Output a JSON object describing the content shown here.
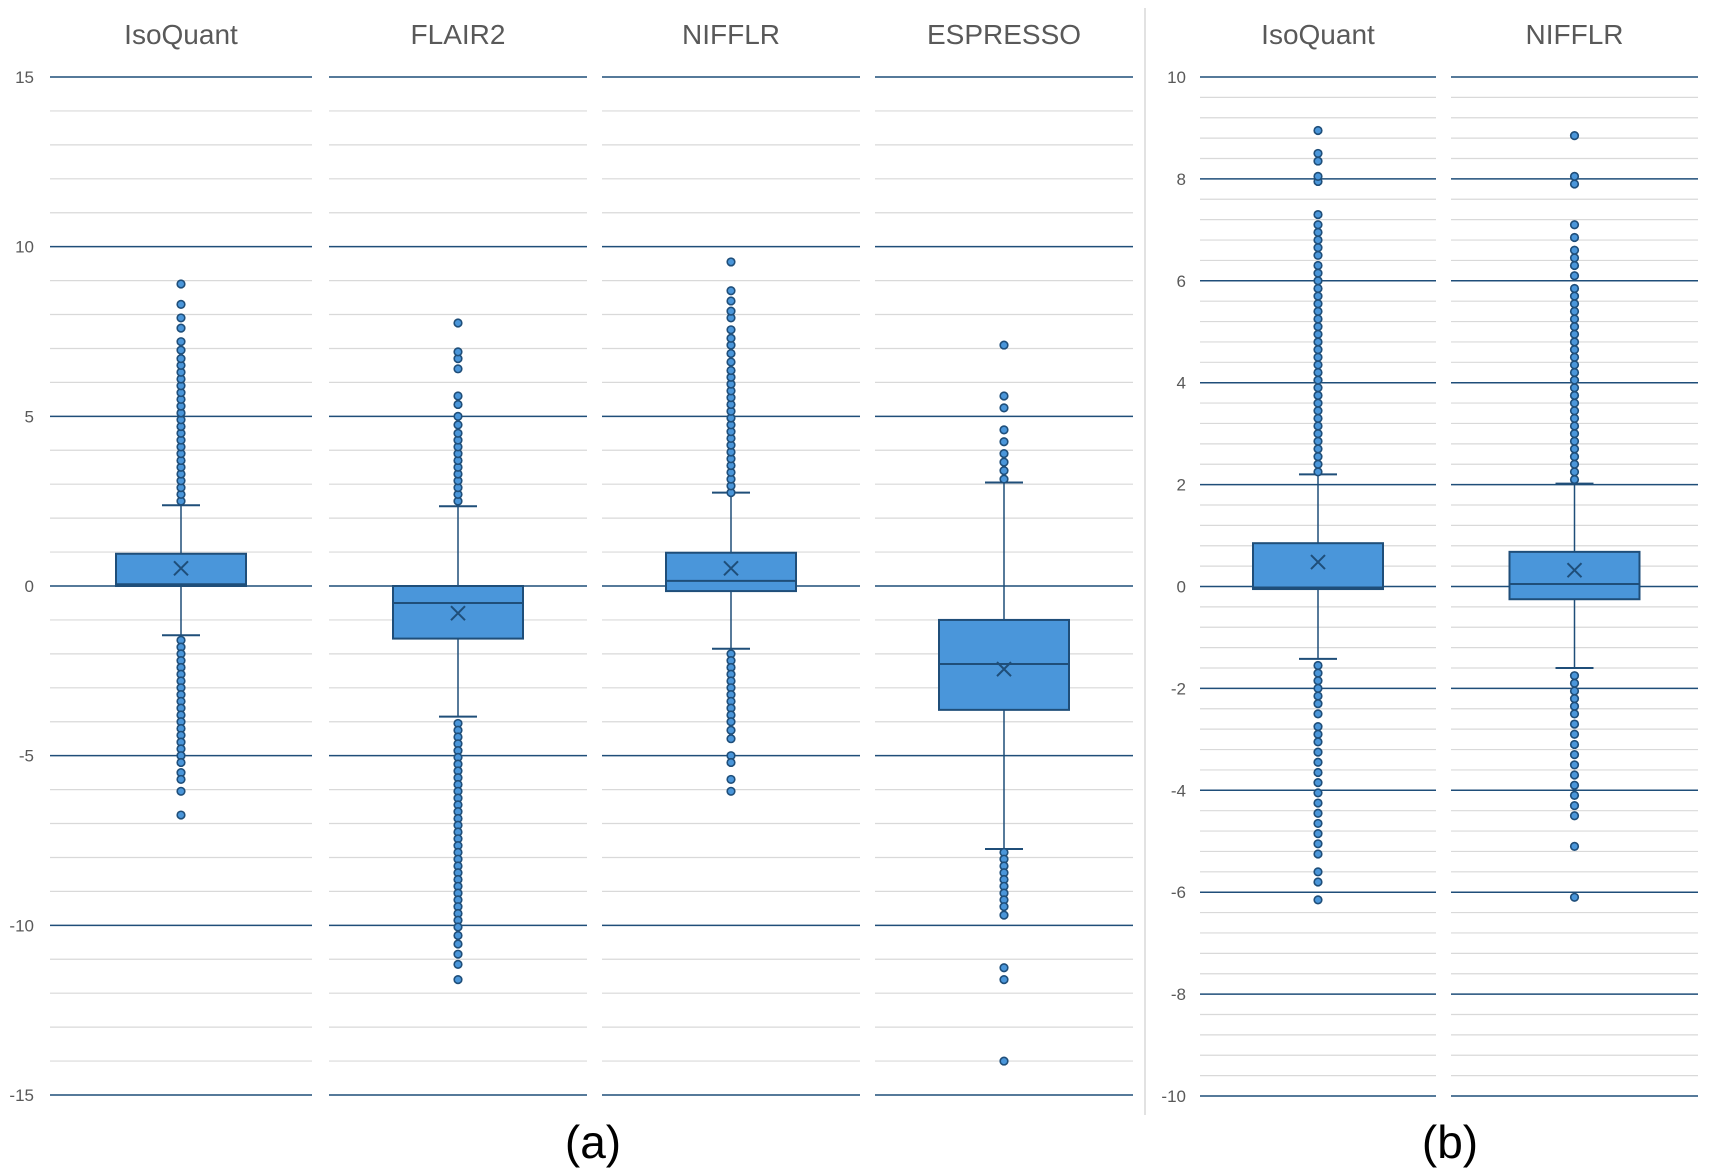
{
  "colors": {
    "box_fill": "#4a96da",
    "box_stroke": "#1f4e79",
    "gridline_major": "#1f4e79",
    "gridline_minor": "#d9d9d9",
    "text": "#595959"
  },
  "chart_data": [
    {
      "type": "box",
      "caption": "(a)",
      "ylim": [
        -15,
        15
      ],
      "y_major_ticks": [
        15,
        10,
        5,
        0,
        -5,
        -10,
        -15
      ],
      "y_tick_labels": [
        "15",
        "10",
        "5",
        "0",
        "-5",
        "-10",
        "-15"
      ],
      "y_minor_step": 1,
      "grid": true,
      "series": [
        {
          "name": "IsoQuant",
          "q1": 0.0,
          "median": 0.05,
          "q3": 0.95,
          "mean": 0.52,
          "whisker_low": -1.45,
          "whisker_high": 2.38,
          "outliers": [
            2.5,
            2.7,
            2.9,
            3.1,
            3.3,
            3.5,
            3.7,
            3.9,
            4.1,
            4.3,
            4.5,
            4.7,
            4.9,
            5.1,
            5.3,
            5.5,
            5.7,
            5.9,
            6.1,
            6.3,
            6.5,
            6.7,
            6.95,
            7.2,
            7.6,
            7.9,
            8.3,
            8.9,
            -1.6,
            -1.8,
            -2.0,
            -2.2,
            -2.4,
            -2.6,
            -2.8,
            -3.0,
            -3.2,
            -3.4,
            -3.6,
            -3.8,
            -4.0,
            -4.2,
            -4.4,
            -4.6,
            -4.8,
            -5.0,
            -5.2,
            -5.5,
            -5.7,
            -6.05,
            -6.75
          ]
        },
        {
          "name": "FLAIR2",
          "q1": -1.55,
          "median": -0.5,
          "q3": 0.0,
          "mean": -0.8,
          "whisker_low": -3.85,
          "whisker_high": 2.35,
          "outliers": [
            2.5,
            2.7,
            2.9,
            3.1,
            3.3,
            3.5,
            3.7,
            3.9,
            4.1,
            4.3,
            4.5,
            4.75,
            5.0,
            5.35,
            5.6,
            6.4,
            6.7,
            6.9,
            7.75,
            -4.05,
            -4.25,
            -4.45,
            -4.65,
            -4.85,
            -5.05,
            -5.25,
            -5.45,
            -5.65,
            -5.85,
            -6.05,
            -6.25,
            -6.45,
            -6.65,
            -6.85,
            -7.05,
            -7.25,
            -7.45,
            -7.65,
            -7.85,
            -8.05,
            -8.25,
            -8.45,
            -8.65,
            -8.85,
            -9.05,
            -9.25,
            -9.45,
            -9.65,
            -9.85,
            -10.05,
            -10.3,
            -10.55,
            -10.85,
            -11.15,
            -11.6
          ]
        },
        {
          "name": "NIFFLR",
          "q1": -0.15,
          "median": 0.15,
          "q3": 0.98,
          "mean": 0.52,
          "whisker_low": -1.85,
          "whisker_high": 2.75,
          "outliers": [
            2.75,
            2.95,
            3.15,
            3.35,
            3.55,
            3.75,
            3.95,
            4.15,
            4.35,
            4.55,
            4.75,
            4.95,
            5.15,
            5.35,
            5.55,
            5.75,
            5.95,
            6.15,
            6.35,
            6.6,
            6.85,
            7.1,
            7.3,
            7.55,
            7.9,
            8.1,
            8.4,
            8.7,
            9.55,
            -2.0,
            -2.2,
            -2.4,
            -2.6,
            -2.8,
            -3.0,
            -3.2,
            -3.4,
            -3.6,
            -3.8,
            -4.0,
            -4.25,
            -4.5,
            -5.0,
            -5.2,
            -5.7,
            -6.05
          ]
        },
        {
          "name": "ESPRESSO",
          "q1": -3.65,
          "median": -2.3,
          "q3": -1.0,
          "mean": -2.45,
          "whisker_low": -7.75,
          "whisker_high": 3.05,
          "outliers": [
            3.15,
            3.4,
            3.65,
            3.9,
            4.25,
            4.6,
            5.25,
            5.6,
            7.1,
            -7.85,
            -8.05,
            -8.25,
            -8.45,
            -8.65,
            -8.85,
            -9.05,
            -9.25,
            -9.45,
            -9.7,
            -11.25,
            -11.6,
            -14.0
          ]
        }
      ]
    },
    {
      "type": "box",
      "caption": "(b)",
      "ylim": [
        -10,
        10
      ],
      "y_major_ticks": [
        10,
        8,
        6,
        4,
        2,
        0,
        -2,
        -4,
        -6,
        -8,
        -10
      ],
      "y_tick_labels": [
        "10",
        "8",
        "6",
        "4",
        "2",
        "0",
        "-2",
        "-4",
        "-6",
        "-8",
        "-10"
      ],
      "y_minor_step": 0.4,
      "grid": true,
      "series": [
        {
          "name": "IsoQuant",
          "q1": -0.05,
          "median": -0.02,
          "q3": 0.85,
          "mean": 0.48,
          "whisker_low": -1.42,
          "whisker_high": 2.2,
          "outliers": [
            2.25,
            2.4,
            2.55,
            2.7,
            2.85,
            3.0,
            3.15,
            3.3,
            3.45,
            3.6,
            3.75,
            3.9,
            4.05,
            4.2,
            4.35,
            4.5,
            4.65,
            4.8,
            4.95,
            5.1,
            5.25,
            5.4,
            5.55,
            5.7,
            5.85,
            6.0,
            6.15,
            6.3,
            6.5,
            6.65,
            6.8,
            6.95,
            7.1,
            7.3,
            7.95,
            8.05,
            8.35,
            8.5,
            8.95,
            -1.55,
            -1.7,
            -1.85,
            -2.0,
            -2.15,
            -2.3,
            -2.5,
            -2.75,
            -2.9,
            -3.05,
            -3.25,
            -3.45,
            -3.65,
            -3.85,
            -4.05,
            -4.25,
            -4.45,
            -4.65,
            -4.85,
            -5.05,
            -5.25,
            -5.6,
            -5.8,
            -6.15
          ]
        },
        {
          "name": "NIFFLR",
          "q1": -0.25,
          "median": 0.05,
          "q3": 0.68,
          "mean": 0.32,
          "whisker_low": -1.6,
          "whisker_high": 2.02,
          "outliers": [
            2.1,
            2.25,
            2.4,
            2.55,
            2.7,
            2.85,
            3.0,
            3.15,
            3.3,
            3.45,
            3.6,
            3.75,
            3.9,
            4.05,
            4.2,
            4.35,
            4.5,
            4.65,
            4.8,
            4.95,
            5.1,
            5.25,
            5.4,
            5.55,
            5.7,
            5.85,
            6.1,
            6.3,
            6.45,
            6.6,
            6.85,
            7.1,
            7.9,
            8.05,
            8.85,
            -1.75,
            -1.9,
            -2.05,
            -2.2,
            -2.35,
            -2.5,
            -2.7,
            -2.9,
            -3.1,
            -3.3,
            -3.5,
            -3.7,
            -3.9,
            -4.1,
            -4.3,
            -4.5,
            -5.1,
            -6.1
          ]
        }
      ]
    }
  ]
}
